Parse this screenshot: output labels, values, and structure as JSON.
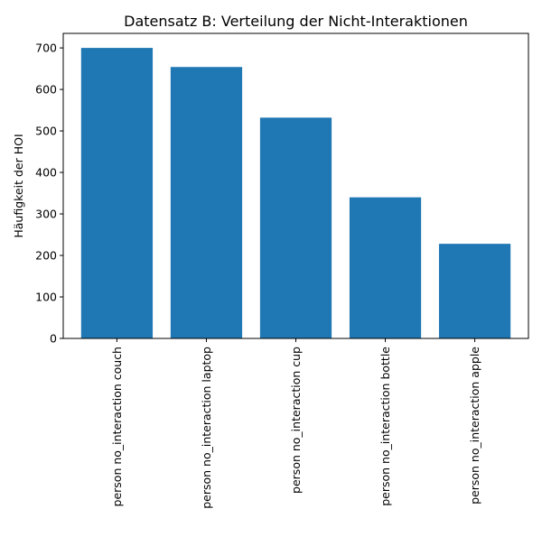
{
  "chart_data": {
    "type": "bar",
    "title": "Datensatz B: Verteilung der Nicht-Interaktionen",
    "xlabel": "",
    "ylabel": "Häufigkeit der HOI",
    "categories": [
      "person no_interaction couch",
      "person no_interaction laptop",
      "person no_interaction cup",
      "person no_interaction bottle",
      "person no_interaction apple"
    ],
    "values": [
      700,
      654,
      532,
      340,
      228
    ],
    "ylim": [
      0,
      735
    ],
    "yticks": [
      0,
      100,
      200,
      300,
      400,
      500,
      600,
      700
    ],
    "grid": false,
    "bar_color": "#1f77b4"
  }
}
